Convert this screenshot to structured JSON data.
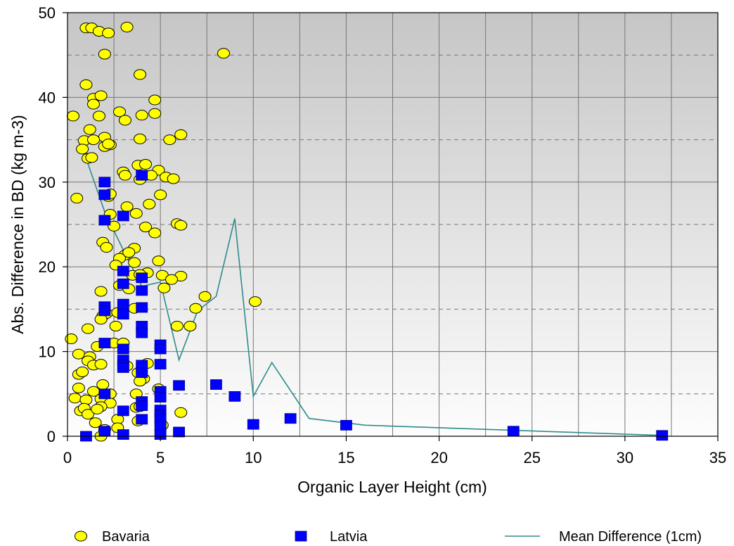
{
  "chart_data": {
    "type": "scatter",
    "xlabel": "Organic Layer Height (cm)",
    "ylabel": "Abs. Difference in BD (kg m-3)",
    "xlim": [
      0,
      35
    ],
    "ylim": [
      0,
      50
    ],
    "xticks": [
      0,
      5,
      10,
      15,
      20,
      25,
      30,
      35
    ],
    "yticks": [
      0,
      10,
      20,
      30,
      40,
      50
    ],
    "grid": "major solid, minor dashed horizontal",
    "legend_position": "bottom",
    "background": "gradient grey (top) to white (bottom)",
    "series": [
      {
        "name": "Bavaria",
        "kind": "scatter",
        "marker": "circle",
        "color": "#ffff00",
        "points": [
          [
            1,
            48.2
          ],
          [
            1.3,
            48.2
          ],
          [
            1.7,
            47.8
          ],
          [
            2.2,
            47.6
          ],
          [
            3.2,
            48.3
          ],
          [
            8.4,
            45.2
          ],
          [
            2,
            45.1
          ],
          [
            3.9,
            42.7
          ],
          [
            1,
            41.5
          ],
          [
            1.4,
            39.9
          ],
          [
            1.8,
            40.2
          ],
          [
            1.4,
            39.2
          ],
          [
            4.7,
            39.7
          ],
          [
            0.3,
            37.8
          ],
          [
            1.7,
            37.8
          ],
          [
            2.8,
            38.3
          ],
          [
            3.1,
            37.3
          ],
          [
            4,
            37.9
          ],
          [
            4.7,
            38.1
          ],
          [
            1.2,
            36.2
          ],
          [
            2,
            35.3
          ],
          [
            0.9,
            34.9
          ],
          [
            1.4,
            35
          ],
          [
            2.3,
            34.4
          ],
          [
            2,
            34.2
          ],
          [
            2.2,
            34.5
          ],
          [
            0.8,
            33.9
          ],
          [
            3.9,
            35.1
          ],
          [
            5.5,
            35
          ],
          [
            6.1,
            35.6
          ],
          [
            1.1,
            32.8
          ],
          [
            1.3,
            32.9
          ],
          [
            3.8,
            32
          ],
          [
            4.2,
            32.1
          ],
          [
            4.9,
            31.4
          ],
          [
            3,
            31.2
          ],
          [
            3.1,
            30.8
          ],
          [
            3.9,
            30.3
          ],
          [
            4.5,
            30.8
          ],
          [
            5.3,
            30.6
          ],
          [
            5.7,
            30.4
          ],
          [
            0.5,
            28.1
          ],
          [
            2.2,
            28.3
          ],
          [
            2.3,
            28.6
          ],
          [
            5,
            28.5
          ],
          [
            3.2,
            27.1
          ],
          [
            4.4,
            27.4
          ],
          [
            2.3,
            26.2
          ],
          [
            3.7,
            26.3
          ],
          [
            2.5,
            24.8
          ],
          [
            4.2,
            24.7
          ],
          [
            5.9,
            25.1
          ],
          [
            6.1,
            24.9
          ],
          [
            4.7,
            24
          ],
          [
            1.9,
            22.9
          ],
          [
            2.1,
            22.3
          ],
          [
            3.1,
            21.4
          ],
          [
            3.6,
            22.2
          ],
          [
            3.3,
            21.7
          ],
          [
            2.8,
            21
          ],
          [
            2.6,
            20.2
          ],
          [
            3.6,
            20.5
          ],
          [
            4.9,
            20.7
          ],
          [
            4.3,
            19.3
          ],
          [
            5.1,
            19
          ],
          [
            6.1,
            18.9
          ],
          [
            5.6,
            18.5
          ],
          [
            3.5,
            19
          ],
          [
            3.9,
            19.1
          ],
          [
            5.2,
            17.5
          ],
          [
            2.8,
            17.8
          ],
          [
            3.3,
            17.4
          ],
          [
            1.8,
            17.1
          ],
          [
            7.4,
            16.5
          ],
          [
            10.1,
            15.9
          ],
          [
            3.6,
            15.1
          ],
          [
            6.9,
            15.1
          ],
          [
            1.9,
            14.2
          ],
          [
            2.1,
            14.5
          ],
          [
            2.7,
            14.6
          ],
          [
            1.8,
            13.8
          ],
          [
            2.6,
            13
          ],
          [
            5.9,
            13
          ],
          [
            6.6,
            13
          ],
          [
            0.2,
            11.5
          ],
          [
            1.1,
            12.7
          ],
          [
            2.5,
            11
          ],
          [
            3,
            11
          ],
          [
            0.6,
            9.7
          ],
          [
            1.2,
            9.4
          ],
          [
            1.6,
            10.6
          ],
          [
            1.1,
            8.9
          ],
          [
            1.4,
            8.4
          ],
          [
            1.8,
            8.5
          ],
          [
            3.2,
            8.3
          ],
          [
            4.3,
            8.6
          ],
          [
            0.6,
            7.3
          ],
          [
            0.8,
            7.6
          ],
          [
            3.8,
            7.5
          ],
          [
            4.1,
            6.8
          ],
          [
            3.9,
            6.5
          ],
          [
            1.9,
            6.1
          ],
          [
            0.6,
            5.7
          ],
          [
            1.4,
            5.3
          ],
          [
            2.3,
            5
          ],
          [
            3.7,
            5
          ],
          [
            4.9,
            5.6
          ],
          [
            0.4,
            4.5
          ],
          [
            1,
            4.3
          ],
          [
            1.8,
            4.4
          ],
          [
            2.3,
            3.9
          ],
          [
            1.8,
            3.5
          ],
          [
            0.7,
            3
          ],
          [
            0.9,
            3.3
          ],
          [
            1.1,
            2.6
          ],
          [
            1.6,
            3.2
          ],
          [
            3.7,
            3.4
          ],
          [
            3.9,
            3.5
          ],
          [
            6.1,
            2.8
          ],
          [
            1.5,
            1.6
          ],
          [
            2.7,
            2
          ],
          [
            3.8,
            1.8
          ],
          [
            2,
            0.8
          ],
          [
            2.7,
            1
          ],
          [
            5.1,
            1.3
          ],
          [
            1.8,
            0
          ]
        ]
      },
      {
        "name": "Latvia",
        "kind": "scatter",
        "marker": "square",
        "color": "#0000ff",
        "points": [
          [
            2,
            30
          ],
          [
            2,
            28.5
          ],
          [
            2,
            25.5
          ],
          [
            3,
            26
          ],
          [
            4,
            30.8
          ],
          [
            3,
            19.5
          ],
          [
            4,
            18.7
          ],
          [
            3,
            18
          ],
          [
            4,
            17.2
          ],
          [
            2,
            15.3
          ],
          [
            3,
            15.6
          ],
          [
            4,
            15.2
          ],
          [
            2,
            14.8
          ],
          [
            3,
            14.4
          ],
          [
            4,
            13
          ],
          [
            4,
            12.2
          ],
          [
            2,
            11
          ],
          [
            3,
            10.3
          ],
          [
            5,
            10.8
          ],
          [
            5,
            10.3
          ],
          [
            3,
            9
          ],
          [
            3,
            8.4
          ],
          [
            3,
            8.1
          ],
          [
            4,
            8.4
          ],
          [
            4,
            8
          ],
          [
            5,
            8.5
          ],
          [
            4,
            7.5
          ],
          [
            5,
            5.3
          ],
          [
            6,
            6
          ],
          [
            8,
            6.1
          ],
          [
            2,
            5
          ],
          [
            5,
            4.6
          ],
          [
            9,
            4.7
          ],
          [
            4,
            4.1
          ],
          [
            4,
            3.6
          ],
          [
            3,
            3
          ],
          [
            5,
            3.1
          ],
          [
            5,
            2.5
          ],
          [
            4,
            2
          ],
          [
            5,
            2
          ],
          [
            12,
            2.1
          ],
          [
            10,
            1.4
          ],
          [
            15,
            1.3
          ],
          [
            5,
            1.2
          ],
          [
            24,
            0.6
          ],
          [
            2,
            0.6
          ],
          [
            6,
            0.5
          ],
          [
            1,
            0
          ],
          [
            3,
            0.2
          ],
          [
            5,
            0.2
          ],
          [
            32,
            0.1
          ]
        ]
      },
      {
        "name": "Mean Difference (1cm)",
        "kind": "line",
        "color": "#2f8b8b",
        "points": [
          [
            1,
            32.8
          ],
          [
            2,
            26.5
          ],
          [
            3,
            22
          ],
          [
            4,
            17.7
          ],
          [
            5,
            18.2
          ],
          [
            6,
            9
          ],
          [
            7,
            14.8
          ],
          [
            8,
            16.5
          ],
          [
            9,
            25.7
          ],
          [
            10,
            4.7
          ],
          [
            11,
            8.7
          ],
          [
            13,
            2.1
          ],
          [
            16,
            1.3
          ],
          [
            32,
            0.1
          ]
        ]
      }
    ]
  }
}
